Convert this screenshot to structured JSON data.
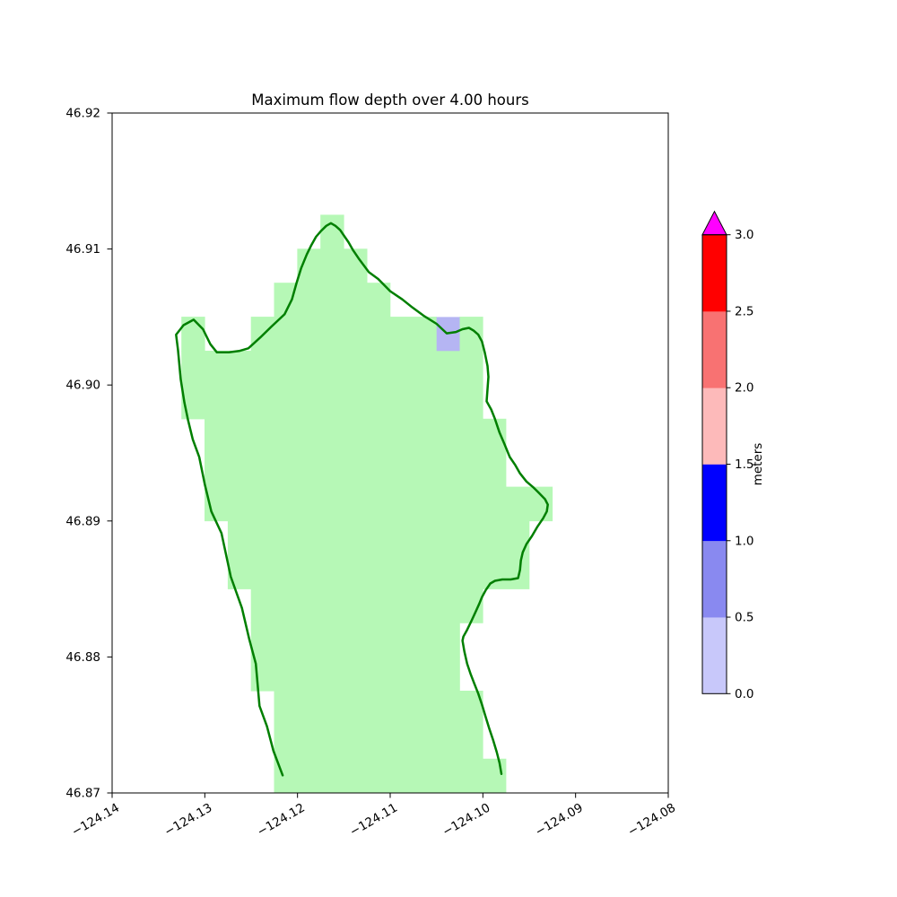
{
  "figure": {
    "background_color": "#ffffff"
  },
  "chart_data": {
    "type": "heatmap",
    "title": "Maximum flow depth over 4.00 hours",
    "xlabel": "",
    "ylabel": "",
    "xlim": [
      -124.14,
      -124.08
    ],
    "ylim": [
      46.87,
      46.92
    ],
    "grid": false,
    "x_tick_values": [
      -124.14,
      -124.13,
      -124.12,
      -124.11,
      -124.1,
      -124.09,
      -124.08
    ],
    "x_tick_labels": [
      "−124.14",
      "−124.13",
      "−124.12",
      "−124.11",
      "−124.10",
      "−124.09",
      "−124.08"
    ],
    "y_tick_values": [
      46.92,
      46.91,
      46.9,
      46.89,
      46.88,
      46.87
    ],
    "y_tick_labels": [
      "46.92",
      "46.91",
      "46.90",
      "46.89",
      "46.88",
      "46.87"
    ],
    "cell_size_deg": 0.0025,
    "land_region": {
      "color": "#b6f8b6",
      "rows": [
        {
          "lat": [
            46.91,
            46.9125
          ],
          "spans": [
            [
              -124.1175,
              -124.115
            ]
          ]
        },
        {
          "lat": [
            46.9075,
            46.91
          ],
          "spans": [
            [
              -124.12,
              -124.1125
            ]
          ]
        },
        {
          "lat": [
            46.905,
            46.9075
          ],
          "spans": [
            [
              -124.1225,
              -124.11
            ]
          ]
        },
        {
          "lat": [
            46.9025,
            46.905
          ],
          "spans": [
            [
              -124.1325,
              -124.13
            ],
            [
              -124.125,
              -124.105
            ],
            [
              -124.1025,
              -124.1
            ]
          ]
        },
        {
          "lat": [
            46.9,
            46.9025
          ],
          "spans": [
            [
              -124.1325,
              -124.1
            ]
          ]
        },
        {
          "lat": [
            46.8975,
            46.9
          ],
          "spans": [
            [
              -124.1325,
              -124.1
            ]
          ]
        },
        {
          "lat": [
            46.895,
            46.8975
          ],
          "spans": [
            [
              -124.13,
              -124.0975
            ]
          ]
        },
        {
          "lat": [
            46.8925,
            46.895
          ],
          "spans": [
            [
              -124.13,
              -124.0975
            ]
          ]
        },
        {
          "lat": [
            46.89,
            46.8925
          ],
          "spans": [
            [
              -124.13,
              -124.0925
            ]
          ]
        },
        {
          "lat": [
            46.8875,
            46.89
          ],
          "spans": [
            [
              -124.1275,
              -124.095
            ]
          ]
        },
        {
          "lat": [
            46.885,
            46.8875
          ],
          "spans": [
            [
              -124.1275,
              -124.095
            ]
          ]
        },
        {
          "lat": [
            46.8825,
            46.885
          ],
          "spans": [
            [
              -124.125,
              -124.1
            ]
          ]
        },
        {
          "lat": [
            46.88,
            46.8825
          ],
          "spans": [
            [
              -124.125,
              -124.1025
            ]
          ]
        },
        {
          "lat": [
            46.8775,
            46.88
          ],
          "spans": [
            [
              -124.125,
              -124.1025
            ]
          ]
        },
        {
          "lat": [
            46.875,
            46.8775
          ],
          "spans": [
            [
              -124.1225,
              -124.1
            ]
          ]
        },
        {
          "lat": [
            46.8725,
            46.875
          ],
          "spans": [
            [
              -124.1225,
              -124.1
            ]
          ]
        },
        {
          "lat": [
            46.87,
            46.8725
          ],
          "spans": [
            [
              -124.1225,
              -124.0975
            ]
          ]
        }
      ]
    },
    "flooded_cells": [
      {
        "lon": [
          -124.105,
          -124.1025
        ],
        "lat": [
          46.9025,
          46.905
        ],
        "depth_m": [
          0.0,
          0.5
        ],
        "color": "#b5b5f3"
      }
    ],
    "coastline": {
      "color": "#007f00",
      "width": 2.5,
      "points": [
        [
          -124.1216,
          46.8713
        ],
        [
          -124.1226,
          46.8731
        ],
        [
          -124.1233,
          46.8749
        ],
        [
          -124.1241,
          46.8764
        ],
        [
          -124.1245,
          46.8795
        ],
        [
          -124.1252,
          46.8813
        ],
        [
          -124.126,
          46.8836
        ],
        [
          -124.1272,
          46.8859
        ],
        [
          -124.1282,
          46.8891
        ],
        [
          -124.1293,
          46.8907
        ],
        [
          -124.13,
          46.8927
        ],
        [
          -124.1306,
          46.8947
        ],
        [
          -124.1313,
          46.896
        ],
        [
          -124.1318,
          46.8974
        ],
        [
          -124.1322,
          46.8987
        ],
        [
          -124.1326,
          46.9004
        ],
        [
          -124.1329,
          46.9026
        ],
        [
          -124.1331,
          46.9037
        ],
        [
          -124.1323,
          46.9044
        ],
        [
          -124.1312,
          46.9048
        ],
        [
          -124.1302,
          46.9041
        ],
        [
          -124.1294,
          46.903
        ],
        [
          -124.1287,
          46.9024
        ],
        [
          -124.1274,
          46.9024
        ],
        [
          -124.1263,
          46.9025
        ],
        [
          -124.1253,
          46.9027
        ],
        [
          -124.124,
          46.9035
        ],
        [
          -124.1228,
          46.9043
        ],
        [
          -124.1214,
          46.9052
        ],
        [
          -124.1206,
          46.9063
        ],
        [
          -124.1201,
          46.9075
        ],
        [
          -124.1196,
          46.9086
        ],
        [
          -124.119,
          46.9096
        ],
        [
          -124.1185,
          46.9103
        ],
        [
          -124.118,
          46.9109
        ],
        [
          -124.1175,
          46.9113
        ],
        [
          -124.1169,
          46.9117
        ],
        [
          -124.1164,
          46.9119
        ],
        [
          -124.1159,
          46.9117
        ],
        [
          -124.1154,
          46.9114
        ],
        [
          -124.115,
          46.911
        ],
        [
          -124.1145,
          46.9105
        ],
        [
          -124.114,
          46.9099
        ],
        [
          -124.1134,
          46.9093
        ],
        [
          -124.1123,
          46.9083
        ],
        [
          -124.1113,
          46.9078
        ],
        [
          -124.11,
          46.9069
        ],
        [
          -124.1087,
          46.9063
        ],
        [
          -124.1076,
          46.9057
        ],
        [
          -124.1064,
          46.9051
        ],
        [
          -124.105,
          46.9045
        ],
        [
          -124.1039,
          46.9038
        ],
        [
          -124.1029,
          46.9039
        ],
        [
          -124.1022,
          46.9041
        ],
        [
          -124.1015,
          46.9042
        ],
        [
          -124.101,
          46.904
        ],
        [
          -124.1005,
          46.9037
        ],
        [
          -124.1001,
          46.9032
        ],
        [
          -124.0998,
          46.9024
        ],
        [
          -124.0995,
          46.9014
        ],
        [
          -124.0994,
          46.9006
        ],
        [
          -124.0996,
          46.8988
        ],
        [
          -124.0991,
          46.8982
        ],
        [
          -124.0987,
          46.8975
        ],
        [
          -124.0982,
          46.8965
        ],
        [
          -124.0977,
          46.8957
        ],
        [
          -124.0971,
          46.8947
        ],
        [
          -124.0965,
          46.8941
        ],
        [
          -124.096,
          46.8935
        ],
        [
          -124.0953,
          46.8929
        ],
        [
          -124.0946,
          46.8925
        ],
        [
          -124.094,
          46.8921
        ],
        [
          -124.0933,
          46.8916
        ],
        [
          -124.093,
          46.8912
        ],
        [
          -124.0931,
          46.8907
        ],
        [
          -124.0935,
          46.8902
        ],
        [
          -124.0941,
          46.8896
        ],
        [
          -124.0947,
          46.8889
        ],
        [
          -124.0953,
          46.8883
        ],
        [
          -124.0957,
          46.8877
        ],
        [
          -124.0959,
          46.8871
        ],
        [
          -124.096,
          46.8864
        ],
        [
          -124.0962,
          46.8858
        ],
        [
          -124.097,
          46.8857
        ],
        [
          -124.0979,
          46.8857
        ],
        [
          -124.0987,
          46.8856
        ],
        [
          -124.0992,
          46.8854
        ],
        [
          -124.0997,
          46.8849
        ],
        [
          -124.1001,
          46.8844
        ],
        [
          -124.1004,
          46.8839
        ],
        [
          -124.1008,
          46.8833
        ],
        [
          -124.1012,
          46.8827
        ],
        [
          -124.1017,
          46.882
        ],
        [
          -124.1021,
          46.8815
        ],
        [
          -124.1022,
          46.8812
        ],
        [
          -124.102,
          46.8804
        ],
        [
          -124.1017,
          46.8795
        ],
        [
          -124.1013,
          46.8787
        ],
        [
          -124.1009,
          46.878
        ],
        [
          -124.1005,
          46.8773
        ],
        [
          -124.1001,
          46.8765
        ],
        [
          -124.0997,
          46.8756
        ],
        [
          -124.0993,
          46.8747
        ],
        [
          -124.0989,
          46.8739
        ],
        [
          -124.0985,
          46.873
        ],
        [
          -124.0982,
          46.8722
        ],
        [
          -124.098,
          46.8714
        ]
      ]
    },
    "colorbar": {
      "label": "meters",
      "range": [
        0,
        3
      ],
      "tick_values": [
        0.0,
        0.5,
        1.0,
        1.5,
        2.0,
        2.5,
        3.0
      ],
      "tick_labels": [
        "0.0",
        "0.5",
        "1.0",
        "1.5",
        "2.0",
        "2.5",
        "3.0"
      ],
      "segment_colors": [
        "#c8c8fa",
        "#8989f0",
        "#0000ff",
        "#fdbaba",
        "#f87272",
        "#ff0000"
      ],
      "over_color": "#ff00ff"
    }
  }
}
